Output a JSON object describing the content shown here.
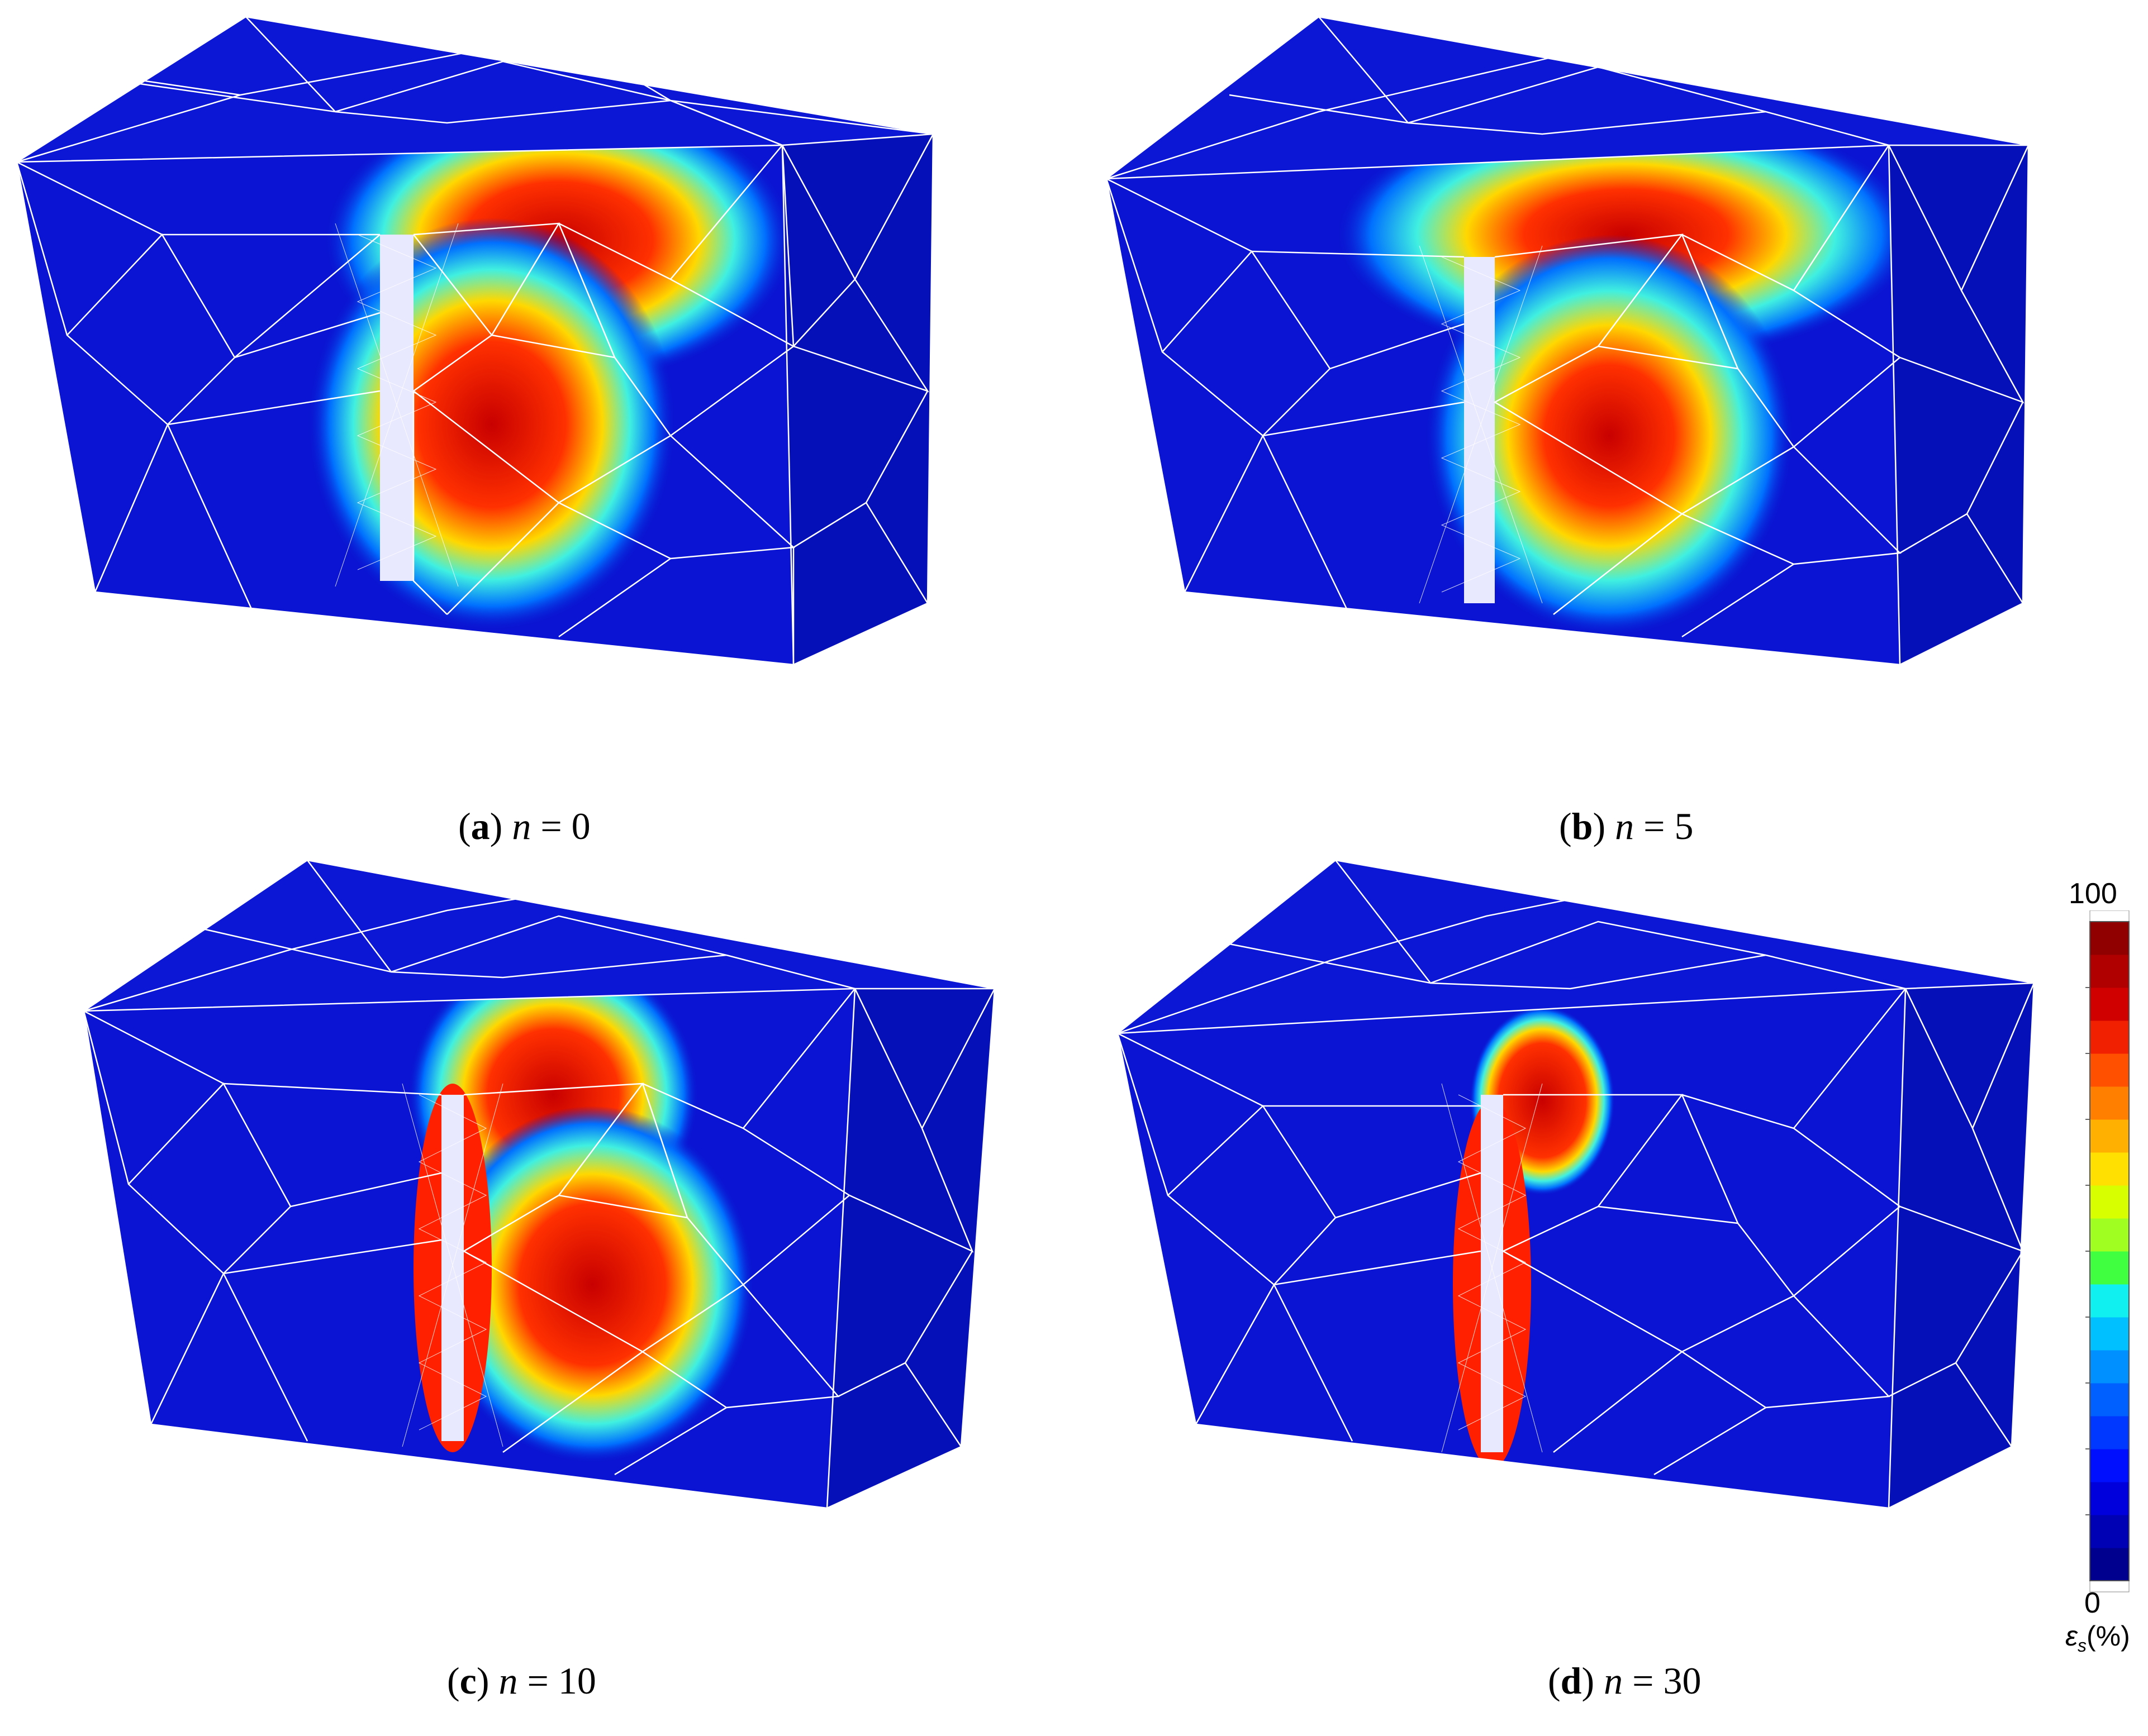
{
  "panels": [
    {
      "id": "a",
      "letter": "a",
      "var": "n",
      "eq": " = ",
      "value": "0"
    },
    {
      "id": "b",
      "letter": "b",
      "var": "n",
      "eq": " = ",
      "value": "5"
    },
    {
      "id": "c",
      "letter": "c",
      "var": "n",
      "eq": " = ",
      "value": "10"
    },
    {
      "id": "d",
      "letter": "d",
      "var": "n",
      "eq": " = ",
      "value": "30"
    }
  ],
  "legend": {
    "max_label": "100",
    "min_label": "0",
    "quantity_symbol": "ε",
    "quantity_subscript": "s",
    "unit": "(%)",
    "colors": [
      "#00008f",
      "#0000b5",
      "#0000dc",
      "#0010ff",
      "#0038ff",
      "#0060ff",
      "#0090ff",
      "#00c0ff",
      "#10f0f0",
      "#40ff40",
      "#a0ff20",
      "#d8ff00",
      "#ffe000",
      "#ffb000",
      "#ff8000",
      "#ff5000",
      "#f02000",
      "#d00000",
      "#b00000",
      "#900000"
    ]
  },
  "colors": {
    "background_blue": "#0a14d2",
    "mesh_line": "#ffffff",
    "hot": "#d40000"
  }
}
